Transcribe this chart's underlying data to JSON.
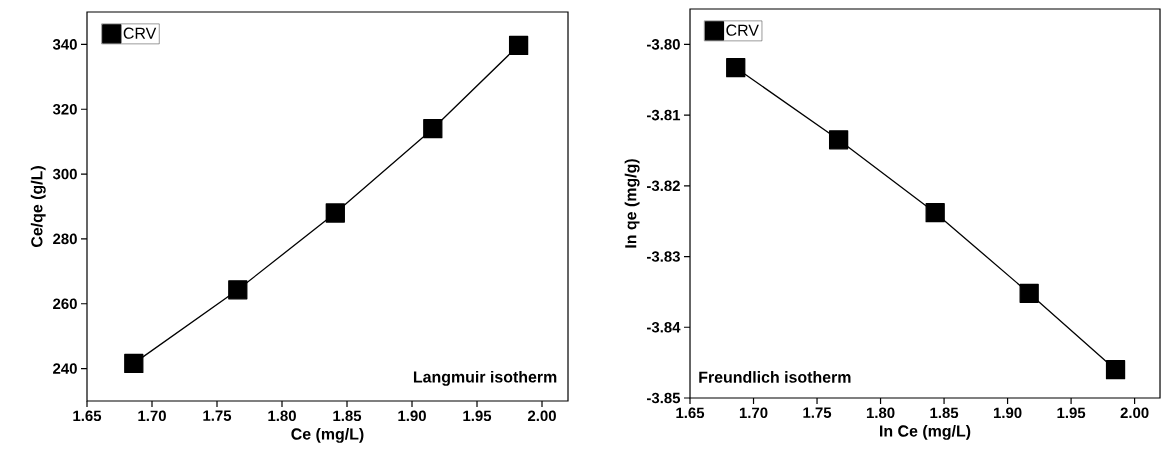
{
  "chart_data": [
    {
      "type": "line",
      "xlabel": "Ce (mg/L)",
      "ylabel": "Ce/qe (g/L)",
      "annotations": [
        "Langmuir isotherm"
      ],
      "x": [
        1.686,
        1.766,
        1.841,
        1.916,
        1.982
      ],
      "series": [
        {
          "name": "CRV",
          "color": "#000000",
          "values": [
            241.6,
            264.3,
            288.0,
            314.0,
            339.7
          ]
        }
      ],
      "xlim": [
        1.65,
        2.02
      ],
      "ylim": [
        230,
        350
      ],
      "xticks": [
        1.65,
        {
          "value": 1.7,
          "label": "1.70"
        },
        1.75,
        {
          "value": 1.8,
          "label": "1.80"
        },
        1.85,
        {
          "value": 1.9,
          "label": "1.90"
        },
        1.95,
        {
          "value": 2.0,
          "label": "2.00"
        }
      ],
      "yticks": [
        240,
        260,
        280,
        300,
        320,
        340
      ],
      "legend": "top left",
      "marker": "square",
      "line_style": "solid",
      "grid": false
    },
    {
      "type": "line",
      "xlabel": "In Ce (mg/L)",
      "ylabel": "In qe (mg/g)",
      "annotations": [
        "Freundlich isotherm"
      ],
      "x": [
        1.686,
        1.767,
        1.843,
        1.917,
        1.985
      ],
      "series": [
        {
          "name": "CRV",
          "color": "#000000",
          "values": [
            -3.8033,
            -3.8135,
            -3.8238,
            -3.8352,
            -3.846
          ]
        }
      ],
      "xlim": [
        1.65,
        2.02
      ],
      "ylim": [
        -3.85,
        -3.795
      ],
      "xticks": [
        1.65,
        {
          "value": 1.7,
          "label": "1.70"
        },
        1.75,
        {
          "value": 1.8,
          "label": "1.80"
        },
        1.85,
        {
          "value": 1.9,
          "label": "1.90"
        },
        1.95,
        {
          "value": 2.0,
          "label": "2.00"
        }
      ],
      "yticks": [
        {
          "value": -3.8,
          "label": "-3.80"
        },
        -3.81,
        -3.82,
        -3.83,
        -3.84,
        {
          "value": -3.85,
          "label": "-3.85"
        }
      ],
      "legend": "top left",
      "marker": "square",
      "line_style": "solid",
      "grid": false
    }
  ]
}
